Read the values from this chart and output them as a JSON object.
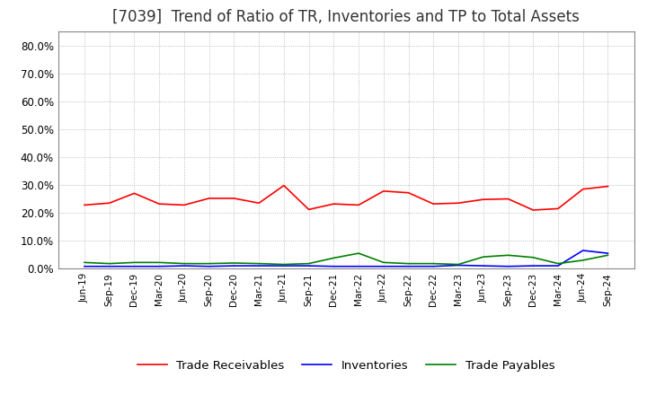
{
  "title": "[7039]  Trend of Ratio of TR, Inventories and TP to Total Assets",
  "title_fontsize": 12,
  "background_color": "#ffffff",
  "grid_color": "#aaaaaa",
  "x_labels": [
    "Jun-19",
    "Sep-19",
    "Dec-19",
    "Mar-20",
    "Jun-20",
    "Sep-20",
    "Dec-20",
    "Mar-21",
    "Jun-21",
    "Sep-21",
    "Dec-21",
    "Mar-22",
    "Jun-22",
    "Sep-22",
    "Dec-22",
    "Mar-23",
    "Jun-23",
    "Sep-23",
    "Dec-23",
    "Mar-24",
    "Jun-24",
    "Sep-24"
  ],
  "trade_receivables": [
    0.228,
    0.235,
    0.27,
    0.232,
    0.228,
    0.252,
    0.252,
    0.235,
    0.298,
    0.212,
    0.232,
    0.228,
    0.278,
    0.272,
    0.232,
    0.235,
    0.248,
    0.25,
    0.21,
    0.215,
    0.285,
    0.295
  ],
  "inventories": [
    0.008,
    0.008,
    0.008,
    0.008,
    0.01,
    0.008,
    0.01,
    0.01,
    0.01,
    0.01,
    0.008,
    0.008,
    0.008,
    0.008,
    0.008,
    0.012,
    0.01,
    0.008,
    0.01,
    0.01,
    0.065,
    0.055
  ],
  "trade_payables": [
    0.022,
    0.018,
    0.022,
    0.022,
    0.018,
    0.018,
    0.02,
    0.018,
    0.015,
    0.018,
    0.038,
    0.055,
    0.022,
    0.018,
    0.018,
    0.015,
    0.042,
    0.048,
    0.04,
    0.018,
    0.03,
    0.048
  ],
  "tr_color": "#ff0000",
  "inv_color": "#0000ff",
  "tp_color": "#008000",
  "ylim": [
    0.0,
    0.85
  ],
  "yticks": [
    0.0,
    0.1,
    0.2,
    0.3,
    0.4,
    0.5,
    0.6,
    0.7,
    0.8
  ],
  "legend_labels": [
    "Trade Receivables",
    "Inventories",
    "Trade Payables"
  ]
}
